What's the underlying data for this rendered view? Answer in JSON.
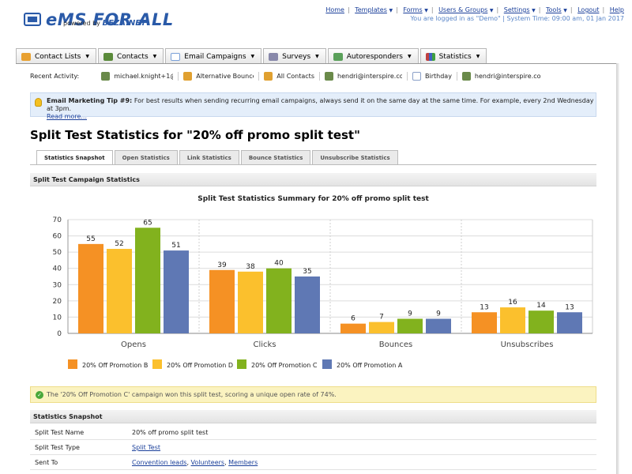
{
  "header": {
    "logo_main": "eMS FOR ALL",
    "logo_powered": "powered by",
    "logo_brand": "BEZA.NET",
    "nav": [
      {
        "label": "Home",
        "dropdown": false
      },
      {
        "label": "Templates",
        "dropdown": true
      },
      {
        "label": "Forms",
        "dropdown": true
      },
      {
        "label": "Users & Groups",
        "dropdown": true
      },
      {
        "label": "Settings",
        "dropdown": true
      },
      {
        "label": "Tools",
        "dropdown": true
      },
      {
        "label": "Logout",
        "dropdown": false
      },
      {
        "label": "Help",
        "dropdown": false
      }
    ],
    "login_info": "You are logged in as \"Demo\" | System Time: 09:00 am, 01 Jan 2017"
  },
  "main_tabs": [
    {
      "label": "Contact Lists",
      "icon": "folder-icon",
      "color": "#e8a030"
    },
    {
      "label": "Contacts",
      "icon": "contacts-icon",
      "color": "#5a8a3a"
    },
    {
      "label": "Email Campaigns",
      "icon": "envelope-icon",
      "color": "#7aa0d8"
    },
    {
      "label": "Surveys",
      "icon": "survey-icon",
      "color": "#8888aa"
    },
    {
      "label": "Autoresponders",
      "icon": "autoresponder-icon",
      "color": "#5aa05a"
    },
    {
      "label": "Statistics",
      "icon": "chart-icon",
      "color": "#c04040"
    }
  ],
  "recent": {
    "label": "Recent Activity:",
    "items": [
      {
        "label": "michael.knight+1@in",
        "icon": "contact-icon",
        "color": "#6a8a4a"
      },
      {
        "label": "Alternative Bounce L",
        "icon": "list-icon",
        "color": "#e0a030"
      },
      {
        "label": "All Contacts",
        "icon": "list-icon",
        "color": "#e0a030"
      },
      {
        "label": "hendri@interspire.co",
        "icon": "contact-icon",
        "color": "#6a8a4a"
      },
      {
        "label": "Birthday",
        "icon": "document-icon",
        "color": "#8aa0c8"
      },
      {
        "label": "hendri@interspire.co",
        "icon": "contact-icon",
        "color": "#6a8a4a"
      }
    ]
  },
  "tip": {
    "title": "Email Marketing Tip #9:",
    "text": "For best results when sending recurring email campaigns, always send it on the same day at the same time. For example, every 2nd Wednesday at 3pm.",
    "link": "Read more..."
  },
  "page_title": "Split Test Statistics for \"20% off promo split test\"",
  "subtabs": [
    "Statistics Snapshot",
    "Open Statistics",
    "Link Statistics",
    "Bounce Statistics",
    "Unsubscribe Statistics"
  ],
  "section_campaign": "Split Test Campaign Statistics",
  "chart_data": {
    "type": "bar",
    "title": "Split Test Statistics Summary for 20% off promo split test",
    "categories": [
      "Opens",
      "Clicks",
      "Bounces",
      "Unsubscribes"
    ],
    "series": [
      {
        "name": "20% Off Promotion B",
        "color": "#f59124",
        "values": [
          55,
          39,
          6,
          13
        ]
      },
      {
        "name": "20% Off Promotion D",
        "color": "#fbc02d",
        "values": [
          52,
          38,
          7,
          16
        ]
      },
      {
        "name": "20% Off Promotion C",
        "color": "#82b21e",
        "values": [
          65,
          40,
          9,
          14
        ]
      },
      {
        "name": "20% Off Promotion A",
        "color": "#5f78b4",
        "values": [
          51,
          35,
          9,
          13
        ]
      }
    ],
    "yticks": [
      0,
      10,
      20,
      30,
      40,
      50,
      60,
      70
    ],
    "ylim": [
      0,
      70
    ],
    "grid": true,
    "legend": "bottom-left"
  },
  "winner_notice": "The '20% Off Promotion C' campaign won this split test, scoring a unique open rate of 74%.",
  "section_snapshot": "Statistics Snapshot",
  "snapshot": {
    "name_label": "Split Test Name",
    "name_value": "20% off promo split test",
    "type_label": "Split Test Type",
    "type_value": "Split Test",
    "sent_label": "Sent To",
    "sent_values": [
      "Convention leads",
      "Volunteers",
      "Members"
    ]
  }
}
